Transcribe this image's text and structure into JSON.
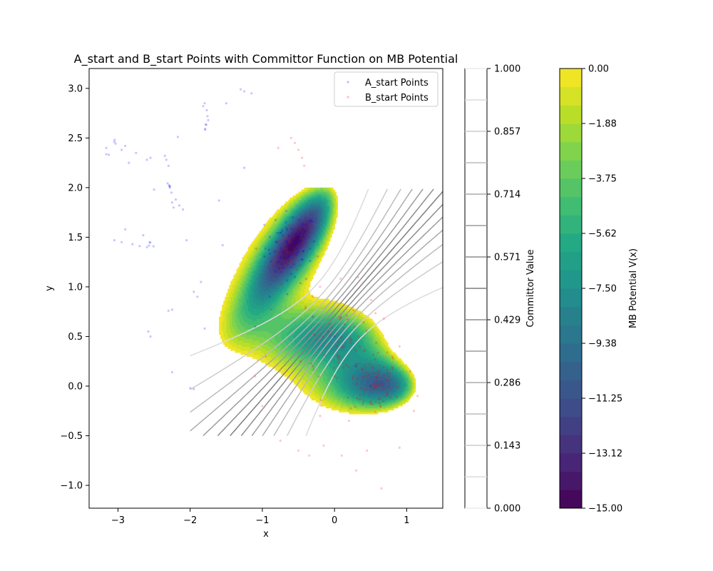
{
  "chart_data": {
    "type": "scatter",
    "title": "A_start and B_start Points with Committor Function on MB Potential",
    "xlabel": "x",
    "ylabel": "y",
    "xlim": [
      -3.4,
      1.5
    ],
    "ylim": [
      -1.23,
      3.2
    ],
    "xticks": [
      -3,
      -2,
      -1,
      0,
      1
    ],
    "yticks": [
      -1.0,
      -0.5,
      0.0,
      0.5,
      1.0,
      1.5,
      2.0,
      2.5,
      3.0
    ],
    "xtick_labels": [
      "−3",
      "−2",
      "−1",
      "0",
      "1"
    ],
    "ytick_labels": [
      "−1.0",
      "−0.5",
      "0.0",
      "0.5",
      "1.0",
      "1.5",
      "2.0",
      "2.5",
      "3.0"
    ],
    "grid": false,
    "legend_position": "top-right",
    "series": [
      {
        "name": "A_start Points",
        "color": "#0000ff",
        "clusters": [
          {
            "x": -0.6,
            "y": 1.4,
            "spread": 0.18,
            "count": 70
          },
          {
            "x": -3.15,
            "y": 2.35,
            "spread": 0.02,
            "count": 3
          },
          {
            "x": -3.05,
            "y": 2.47,
            "spread": 0.02,
            "count": 3
          },
          {
            "x": -2.55,
            "y": 1.42,
            "spread": 0.02,
            "count": 4
          },
          {
            "x": -1.78,
            "y": 2.62,
            "spread": 0.03,
            "count": 4
          },
          {
            "x": -2.32,
            "y": 2.02,
            "spread": 0.03,
            "count": 4
          }
        ],
        "points": [
          [
            -2.35,
            2.32
          ],
          [
            -2.33,
            2.28
          ],
          [
            -2.3,
            2.22
          ],
          [
            -2.28,
            2.0
          ],
          [
            -2.26,
            1.95
          ],
          [
            -2.25,
            1.85
          ],
          [
            -2.23,
            1.8
          ],
          [
            -2.2,
            1.88
          ],
          [
            -2.15,
            1.82
          ],
          [
            -2.1,
            1.78
          ],
          [
            -1.8,
            2.85
          ],
          [
            -1.77,
            2.78
          ],
          [
            -1.76,
            2.72
          ],
          [
            -1.75,
            2.68
          ],
          [
            -1.82,
            2.82
          ],
          [
            -2.55,
            2.3
          ],
          [
            -2.6,
            2.28
          ],
          [
            -2.75,
            2.35
          ],
          [
            -2.9,
            2.42
          ],
          [
            -2.85,
            2.25
          ],
          [
            -2.95,
            2.38
          ],
          [
            -3.05,
            1.47
          ],
          [
            -2.9,
            1.58
          ],
          [
            -2.95,
            1.45
          ],
          [
            -2.8,
            1.43
          ],
          [
            -2.7,
            1.41
          ],
          [
            -2.6,
            1.4
          ],
          [
            -2.65,
            1.52
          ],
          [
            -2.58,
            0.55
          ],
          [
            -2.55,
            0.5
          ],
          [
            -2.3,
            0.76
          ],
          [
            -2.25,
            0.77
          ],
          [
            -2.25,
            0.14
          ],
          [
            -2.5,
            1.98
          ],
          [
            -2.17,
            2.51
          ],
          [
            -2.05,
            1.47
          ],
          [
            -1.95,
            0.95
          ],
          [
            -1.9,
            0.9
          ],
          [
            -1.85,
            1.05
          ],
          [
            -1.3,
            2.99
          ],
          [
            -1.25,
            2.97
          ],
          [
            -1.15,
            2.95
          ],
          [
            -1.5,
            2.85
          ],
          [
            -2.0,
            -0.02
          ],
          [
            -1.95,
            -0.03
          ],
          [
            -1.8,
            0.58
          ],
          [
            -1.25,
            2.2
          ],
          [
            -1.6,
            1.87
          ],
          [
            -1.55,
            1.42
          ],
          [
            -1.1,
            0.6
          ],
          [
            -0.9,
            0.9
          ],
          [
            -0.55,
            1.1
          ],
          [
            0.0,
            0.5
          ],
          [
            0.3,
            0.2
          ],
          [
            0.5,
            0.0
          ],
          [
            -0.3,
            0.7
          ]
        ]
      },
      {
        "name": "B_start Points",
        "color": "#ff0000",
        "clusters": [
          {
            "x": 0.55,
            "y": 0.03,
            "spread": 0.17,
            "count": 75
          },
          {
            "x": 0.1,
            "y": 0.45,
            "spread": 0.28,
            "count": 60
          },
          {
            "x": -0.65,
            "y": 1.35,
            "spread": 0.15,
            "count": 22
          }
        ],
        "points": [
          [
            -0.6,
            2.5
          ],
          [
            -0.55,
            2.45
          ],
          [
            -0.5,
            2.38
          ],
          [
            -0.45,
            2.3
          ],
          [
            -0.42,
            2.22
          ],
          [
            -0.78,
            2.4
          ],
          [
            -0.75,
            -0.55
          ],
          [
            -0.5,
            -0.65
          ],
          [
            -0.35,
            -0.7
          ],
          [
            -0.15,
            -0.6
          ],
          [
            0.1,
            -0.7
          ],
          [
            0.3,
            -0.85
          ],
          [
            0.45,
            -0.65
          ],
          [
            0.65,
            -1.03
          ],
          [
            0.9,
            -0.62
          ],
          [
            1.1,
            -0.25
          ],
          [
            1.15,
            -0.1
          ],
          [
            1.05,
            0.15
          ],
          [
            -1.0,
            -0.2
          ],
          [
            -1.1,
            0.1
          ],
          [
            -0.95,
            0.3
          ],
          [
            -0.3,
            0.2
          ],
          [
            0.0,
            0.1
          ],
          [
            -0.2,
            -0.3
          ],
          [
            0.2,
            -0.35
          ],
          [
            0.8,
            0.3
          ],
          [
            0.9,
            0.4
          ],
          [
            -0.4,
            0.8
          ],
          [
            -0.2,
            1.0
          ],
          [
            -0.3,
            0.9
          ]
        ]
      }
    ],
    "mb_potential": {
      "colormap": "viridis",
      "vmin": -15.0,
      "vmax": 0.0,
      "minima": [
        {
          "x": -0.558,
          "y": 1.442,
          "value": -14.6
        },
        {
          "x": 0.623,
          "y": 0.028,
          "value": -10.8
        },
        {
          "x": -0.05,
          "y": 0.467,
          "value": -8.1
        }
      ],
      "colorbar_label": "MB Potential V(x)",
      "colorbar_ticks": [
        "0.00",
        "−1.88",
        "−3.75",
        "−5.62",
        "−7.50",
        "−9.38",
        "−11.25",
        "−13.12",
        "−15.00"
      ]
    },
    "committor": {
      "levels": 14,
      "colorbar_label": "Committor Value",
      "colorbar_ticks": [
        "1.000",
        "0.857",
        "0.714",
        "0.571",
        "0.429",
        "0.286",
        "0.143",
        "0.000"
      ]
    }
  }
}
